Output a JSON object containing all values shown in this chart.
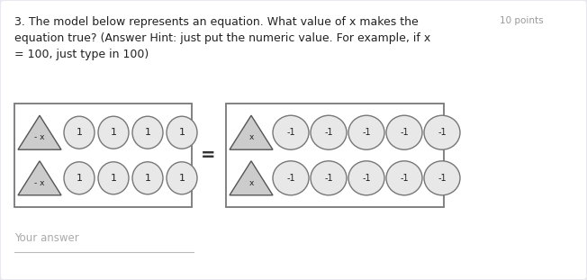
{
  "bg_color": "#e8e8ee",
  "card_color": "#ffffff",
  "title_line1": "3. The model below represents an equation. What value of x makes the",
  "title_points": "10 points",
  "title_line2": "equation true? (Answer Hint: just put the numeric value. For example, if x",
  "title_line3": "= 100, just type in 100)",
  "your_answer_label": "Your answer",
  "box_border_color": "#777777",
  "triangle_fill": "#cccccc",
  "triangle_border": "#555555",
  "circle_fill": "#e8e8e8",
  "circle_border": "#777777",
  "text_color": "#222222",
  "gray_text": "#999999",
  "equals_color": "#333333",
  "title_fontsize": 9.0,
  "points_fontsize": 7.5,
  "fig_width": 6.52,
  "fig_height": 3.11,
  "dpi": 100
}
